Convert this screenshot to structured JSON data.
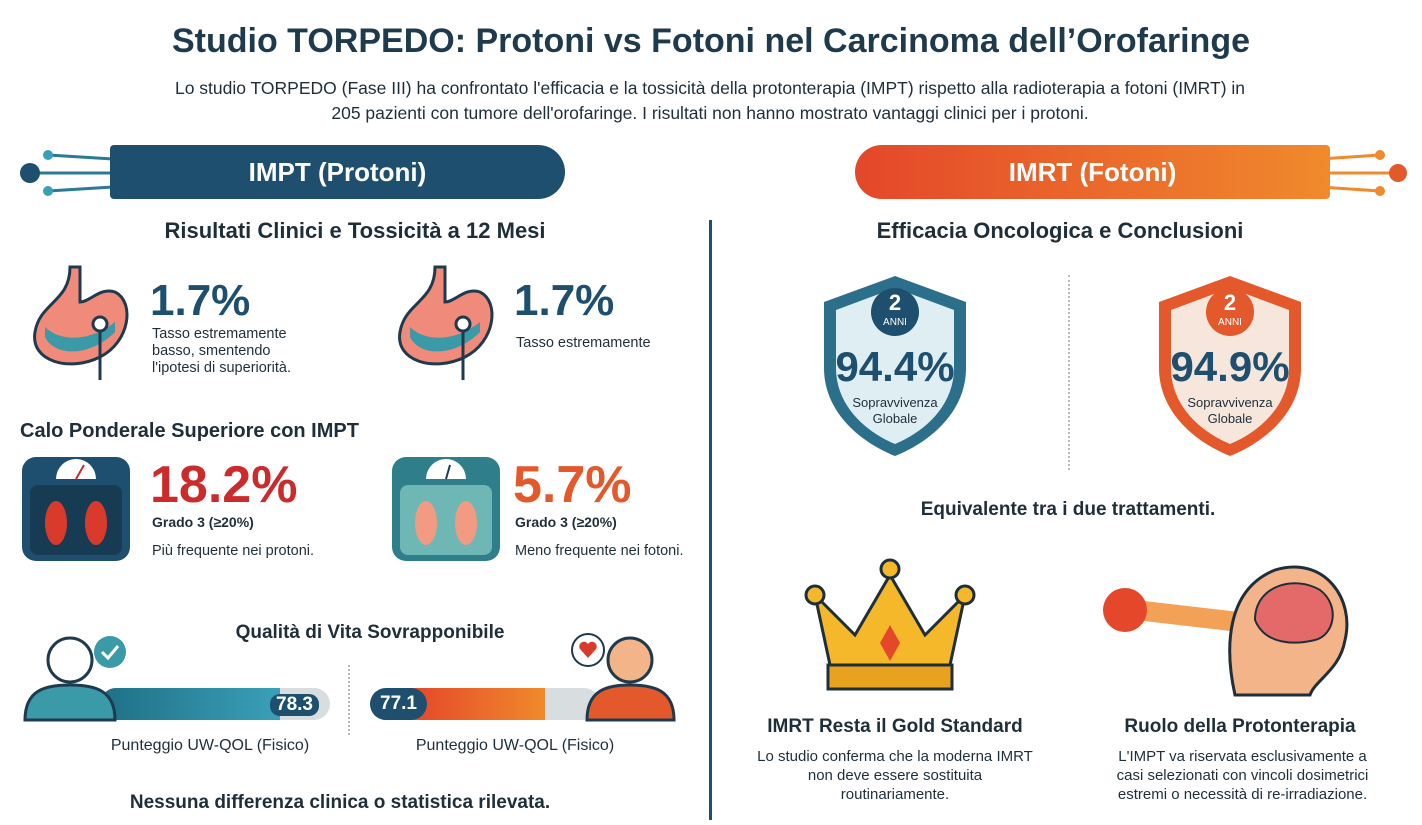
{
  "header": {
    "title": "Studio TORPEDO: Protoni vs Fotoni nel Carcinoma dell’Orofaringe",
    "subtitle": "Lo studio TORPEDO (Fase III) ha confrontato l'efficacia e la tossicità della protonterapia (IMPT) rispetto alla radioterapia a fotoni (IMRT) in 205 pazienti con tumore dell'orofaringe. I risultati non hanno mostrato vantaggi clinici per i protoni."
  },
  "left": {
    "banner": "IMPT (Protoni)",
    "section_title": "Risultati Clinici e Tossicità a 12 Mesi",
    "stats": [
      {
        "value": "1.7%",
        "desc": "Tasso estremamente basso, smentendo l'ipotesi di superiorità."
      },
      {
        "value": "1.7%",
        "desc": "Tasso estremamente"
      }
    ],
    "weight": {
      "title": "Calo Ponderale Superiore con IMPT",
      "items": [
        {
          "value": "18.2%",
          "grade": "Grado 3 (≥20%)",
          "desc": "Più frequente nei protoni."
        },
        {
          "value": "5.7%",
          "grade": "Grado 3 (≥20%)",
          "desc": "Meno frequente nei fotoni."
        }
      ]
    },
    "qol": {
      "title": "Qualità di Vita Sovrapponibile",
      "items": [
        {
          "score": "78.3",
          "label": "Punteggio UW-QOL (Fisico)"
        },
        {
          "score": "77.1",
          "label": "Punteggio UW-QOL (Fisico)"
        }
      ]
    },
    "footer": "Nessuna differenza clinica o statistica rilevata."
  },
  "right": {
    "banner": "IMRT (Fotoni)",
    "section_title": "Efficacia Oncologica e Conclusioni",
    "shields": [
      {
        "years": "2",
        "unit": "ANNI",
        "value": "94.4%",
        "label": "Sopravvivenza Globale"
      },
      {
        "years": "2",
        "unit": "ANNI",
        "value": "94.9%",
        "label": "Sopravvivenza Globale"
      }
    ],
    "equivalence": "Equivalente tra i due trattamenti.",
    "conclusions": [
      {
        "title": "IMRT Resta il Gold Standard",
        "text": "Lo studio conferma che la moderna IMRT non deve essere sostituita routinariamente."
      },
      {
        "title": "Ruolo della Protonterapia",
        "text": "L'IMPT va riservata esclusivamente a casi selezionati con vincoli dosimetrici estremi o necessità di re-irradiazione."
      }
    ]
  }
}
